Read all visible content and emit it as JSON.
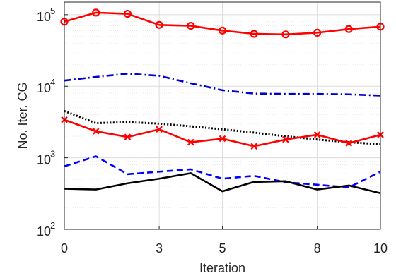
{
  "chart_data": {
    "type": "line",
    "xlabel": "Iteration",
    "ylabel": "No. Iter. CG",
    "x_ticks": [
      0,
      3,
      5,
      8,
      10
    ],
    "y_ticks": [
      {
        "value": 100,
        "base": "10",
        "exp": "2"
      },
      {
        "value": 1000,
        "base": "10",
        "exp": "3"
      },
      {
        "value": 10000,
        "base": "10",
        "exp": "4"
      },
      {
        "value": 100000,
        "base": "10",
        "exp": "5"
      }
    ],
    "xlim": [
      0,
      10
    ],
    "ylim": [
      100,
      150000
    ],
    "y_scale": "log",
    "grid": true,
    "x": [
      0,
      1,
      2,
      3,
      4,
      5,
      6,
      7,
      8,
      9,
      10
    ],
    "series": [
      {
        "color": "#ff0000",
        "style": "solid",
        "marker": "circle",
        "values": [
          80000,
          107000,
          103000,
          72000,
          70000,
          60000,
          54000,
          53000,
          56000,
          63000,
          68000
        ]
      },
      {
        "color": "#0000cc",
        "style": "dashdot",
        "marker": "none",
        "values": [
          12000,
          13500,
          15000,
          14000,
          11000,
          8800,
          7900,
          7800,
          7800,
          7700,
          7400
        ]
      },
      {
        "color": "#000000",
        "style": "dotted",
        "marker": "none",
        "values": [
          4500,
          3050,
          3150,
          3000,
          2750,
          2500,
          2250,
          2000,
          1800,
          1650,
          1550
        ]
      },
      {
        "color": "#ff0000",
        "style": "solid",
        "marker": "x",
        "values": [
          3400,
          2350,
          1950,
          2500,
          1650,
          1850,
          1450,
          1800,
          2100,
          1600,
          2100
        ]
      },
      {
        "color": "#0000ff",
        "style": "dashed",
        "marker": "none",
        "values": [
          760,
          1050,
          590,
          640,
          690,
          510,
          560,
          455,
          420,
          385,
          640
        ]
      },
      {
        "color": "#000000",
        "style": "solid",
        "marker": "none",
        "values": [
          370,
          360,
          440,
          510,
          610,
          340,
          460,
          470,
          360,
          410,
          320
        ]
      }
    ]
  }
}
